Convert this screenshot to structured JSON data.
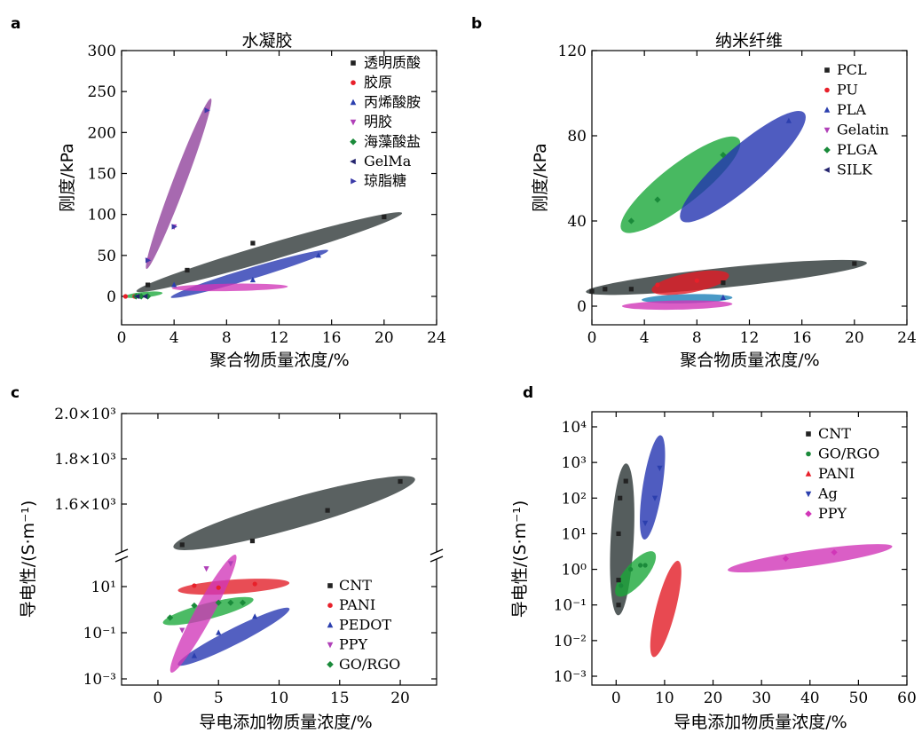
{
  "chart_data": [
    {
      "panel": "a",
      "type": "scatter",
      "title": "水凝胶",
      "xlabel": "聚合物质量浓度/%",
      "ylabel": "刚度/kPa",
      "xlim": [
        0,
        24
      ],
      "ylim": [
        -10,
        300
      ],
      "xticks": [
        "0",
        "4",
        "8",
        "12",
        "16",
        "20",
        "24"
      ],
      "yticks": [
        "0",
        "50",
        "100",
        "150",
        "200",
        "250",
        "300"
      ],
      "legend_position": "top-right",
      "series": [
        {
          "name": "透明质酸",
          "color": "#222222",
          "marker": "square",
          "points": [
            [
              2,
              14
            ],
            [
              5,
              32
            ],
            [
              10,
              65
            ],
            [
              20,
              97
            ]
          ],
          "ellipse": {
            "color": "#2b3535",
            "from": [
              1.5,
              8
            ],
            "to": [
              21,
              100
            ],
            "w": 9
          }
        },
        {
          "name": "胶原",
          "color": "#e8202a",
          "marker": "circle",
          "points": [
            [
              0.3,
              0
            ],
            [
              1,
              0
            ]
          ],
          "ellipse": null
        },
        {
          "name": "丙烯酸胺",
          "color": "#2b3fae",
          "marker": "triangle-up",
          "points": [
            [
              4,
              14
            ],
            [
              10,
              20
            ],
            [
              15,
              50
            ]
          ],
          "ellipse": {
            "color": "#2333b0",
            "from": [
              4,
              0
            ],
            "to": [
              15.5,
              55
            ],
            "w": 6
          }
        },
        {
          "name": "明胶",
          "color": "#b040b8",
          "marker": "triangle-down",
          "points": [
            [
              2,
              44
            ],
            [
              4,
              85
            ],
            [
              6.5,
              227
            ]
          ],
          "ellipse": {
            "color": "#8e3f9a",
            "from": [
              2,
              38
            ],
            "to": [
              6.7,
              237
            ],
            "w": 7
          }
        },
        {
          "name": "海藻酸盐",
          "color": "#1a8a3a",
          "marker": "diamond",
          "points": [
            [
              1.1,
              0
            ],
            [
              1.5,
              0
            ],
            [
              2,
              0
            ]
          ],
          "ellipse": {
            "color": "#1aa83a",
            "from": [
              0.4,
              0
            ],
            "to": [
              3,
              4
            ],
            "w": 3
          }
        },
        {
          "name": "GelMa",
          "color": "#24246e",
          "marker": "triangle-left",
          "points": [
            [
              1.2,
              0
            ],
            [
              1.8,
              0
            ]
          ],
          "ellipse": null
        },
        {
          "name": "琼脂糖",
          "color": "#3a3aa8",
          "marker": "triangle-right",
          "points": [
            [
              2,
              44
            ],
            [
              4,
              85
            ],
            [
              6.5,
              227
            ]
          ],
          "ellipse": null
        },
        {
          "name": "",
          "color": "#d63ab5",
          "marker": "none",
          "points": [],
          "ellipse": {
            "color": "#d136b8",
            "from": [
              4,
              10
            ],
            "to": [
              12.5,
              12
            ],
            "w": 4
          }
        }
      ]
    },
    {
      "panel": "b",
      "type": "scatter",
      "title": "纳米纤维",
      "xlabel": "聚合物质量浓度/%",
      "ylabel": "刚度/kPa",
      "xlim": [
        0,
        24
      ],
      "ylim": [
        -3,
        120
      ],
      "xticks": [
        "0",
        "4",
        "8",
        "12",
        "16",
        "20",
        "24"
      ],
      "yticks": [
        "0",
        "40",
        "80",
        "120"
      ],
      "legend_position": "top-right",
      "series": [
        {
          "name": "PCL",
          "color": "#222222",
          "marker": "square",
          "points": [
            [
              0,
              7
            ],
            [
              1,
              8
            ],
            [
              3,
              8
            ],
            [
              10,
              11
            ],
            [
              20,
              20
            ]
          ],
          "ellipse": {
            "color": "#2b3535",
            "from": [
              0,
              7
            ],
            "to": [
              20.5,
              20
            ],
            "w": 3.5
          }
        },
        {
          "name": "PU",
          "color": "#e8202a",
          "marker": "circle",
          "points": [
            [
              5,
              10
            ],
            [
              8,
              12
            ]
          ],
          "ellipse": {
            "color": "#e21b25",
            "from": [
              5,
              8
            ],
            "to": [
              10,
              14
            ],
            "w": 3.5
          }
        },
        {
          "name": "PLA",
          "color": "#2b3fae",
          "marker": "triangle-up",
          "points": [
            [
              10,
              4
            ],
            [
              15,
              87
            ]
          ],
          "ellipse": {
            "color": "#2333b0",
            "from": [
              7.5,
              44
            ],
            "to": [
              15.5,
              87
            ],
            "w": 7
          }
        },
        {
          "name": "Gelatin",
          "color": "#b040b8",
          "marker": "triangle-down",
          "points": [],
          "ellipse": {
            "color": "#d136b8",
            "from": [
              2.5,
              0
            ],
            "to": [
              10.5,
              1
            ],
            "w": 1.6
          }
        },
        {
          "name": "PLGA",
          "color": "#1a8a3a",
          "marker": "diamond",
          "points": [
            [
              3,
              40
            ],
            [
              5,
              50
            ],
            [
              10,
              71
            ]
          ],
          "ellipse": {
            "color": "#1aa83a",
            "from": [
              3,
              39
            ],
            "to": [
              10.5,
              75
            ],
            "w": 7
          }
        },
        {
          "name": "SILK",
          "color": "#24246e",
          "marker": "triangle-left",
          "points": [],
          "ellipse": {
            "color": "#1c80b8",
            "from": [
              4,
              3
            ],
            "to": [
              10.5,
              4
            ],
            "w": 1.6
          }
        }
      ]
    },
    {
      "panel": "c",
      "type": "scatter",
      "title": "",
      "xlabel": "导电添加物质量浓度/%",
      "ylabel": "导电性/(S·m⁻¹)",
      "xlim": [
        -3,
        23
      ],
      "yscale": "broken-log",
      "xticks": [
        "0",
        "5",
        "10",
        "15",
        "20"
      ],
      "yticks_upper": [
        "1.6×10³",
        "1.8×10³",
        "2.0×10³"
      ],
      "yticks_lower": [
        "10⁻³",
        "10⁻¹",
        "10¹"
      ],
      "legend_position": "center-right",
      "series": [
        {
          "name": "CNT",
          "color": "#222222",
          "marker": "square",
          "points": [
            [
              2,
              1420
            ],
            [
              7.8,
              1437
            ],
            [
              14,
              1572
            ],
            [
              20,
              1700
            ]
          ]
        },
        {
          "name": "PANI",
          "color": "#e8202a",
          "marker": "circle",
          "points": [
            [
              3,
              11
            ],
            [
              5,
              9
            ],
            [
              8,
              13
            ]
          ]
        },
        {
          "name": "PEDOT",
          "color": "#2b3fae",
          "marker": "triangle-up",
          "points": [
            [
              3,
              0.01
            ],
            [
              5,
              0.1
            ],
            [
              8,
              0.5
            ]
          ]
        },
        {
          "name": "PPY",
          "color": "#b040b8",
          "marker": "triangle-down",
          "points": [
            [
              2,
              0.13
            ],
            [
              4,
              60
            ],
            [
              6,
              100
            ]
          ]
        },
        {
          "name": "GO/RGO",
          "color": "#1a8a3a",
          "marker": "diamond",
          "points": [
            [
              1,
              0.45
            ],
            [
              3,
              1.5
            ],
            [
              5,
              2
            ],
            [
              6,
              2
            ],
            [
              7,
              2
            ]
          ]
        }
      ]
    },
    {
      "panel": "d",
      "type": "scatter",
      "title": "",
      "xlabel": "导电添加物质量浓度/%",
      "ylabel": "导电性/(S·m⁻¹)",
      "xlim": [
        -5,
        60
      ],
      "yscale": "log",
      "ylim_log10": [
        -3,
        4
      ],
      "xticks": [
        "0",
        "10",
        "20",
        "30",
        "40",
        "50",
        "60"
      ],
      "yticks": [
        "10⁻³",
        "10⁻²",
        "10⁻¹",
        "10⁰",
        "10¹",
        "10²",
        "10³",
        "10⁴"
      ],
      "legend_position": "top-right",
      "series": [
        {
          "name": "CNT",
          "color": "#222222",
          "marker": "square",
          "points": [
            [
              0.5,
              0.1
            ],
            [
              0.5,
              0.5
            ],
            [
              0.5,
              10
            ],
            [
              0.8,
              100
            ],
            [
              2,
              300
            ]
          ]
        },
        {
          "name": "GO/RGO",
          "color": "#1a8a3a",
          "marker": "circle",
          "points": [
            [
              1,
              0.35
            ],
            [
              3,
              1
            ],
            [
              5,
              1.3
            ],
            [
              6,
              1.3
            ]
          ]
        },
        {
          "name": "PANI",
          "color": "#e8202a",
          "marker": "triangle-up",
          "points": []
        },
        {
          "name": "Ag",
          "color": "#2b3fae",
          "marker": "triangle-down",
          "points": [
            [
              6,
              20
            ],
            [
              8,
              100
            ],
            [
              9,
              700
            ]
          ]
        },
        {
          "name": "PPY",
          "color": "#d136b8",
          "marker": "diamond",
          "points": [
            [
              35,
              2
            ],
            [
              45,
              3
            ]
          ]
        }
      ]
    }
  ]
}
